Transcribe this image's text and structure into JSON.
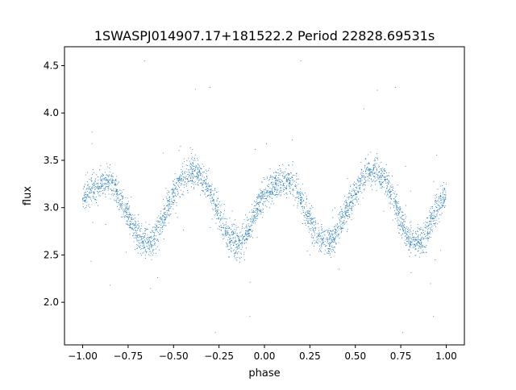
{
  "chart_data": {
    "type": "scatter",
    "title": "1SWASPJ014907.17+181522.2 Period 22828.69531s",
    "xlabel": "phase",
    "ylabel": "flux",
    "xlim": [
      -1.1,
      1.1
    ],
    "ylim": [
      1.55,
      4.7
    ],
    "x_ticks": [
      -1.0,
      -0.75,
      -0.5,
      -0.25,
      0.0,
      0.25,
      0.5,
      0.75,
      1.0
    ],
    "x_tick_labels": [
      "−1.00",
      "−0.75",
      "−0.50",
      "−0.25",
      "0.00",
      "0.25",
      "0.50",
      "0.75",
      "1.00"
    ],
    "y_ticks": [
      2.0,
      2.5,
      3.0,
      3.5,
      4.0,
      4.5
    ],
    "y_tick_labels": [
      "2.0",
      "2.5",
      "3.0",
      "3.5",
      "4.0",
      "4.5"
    ],
    "grid": false,
    "legend": "none",
    "series": [
      {
        "color": "#1f77b4",
        "marker": "point",
        "description": "folded light curve, two cycles from phase -1 to 1",
        "x": [
          -1.0,
          -0.97,
          -0.94,
          -0.91,
          -0.88,
          -0.85,
          -0.82,
          -0.79,
          -0.76,
          -0.73,
          -0.7,
          -0.67,
          -0.64,
          -0.61,
          -0.58,
          -0.55,
          -0.52,
          -0.49,
          -0.46,
          -0.43,
          -0.4,
          -0.37,
          -0.34,
          -0.31,
          -0.28,
          -0.25,
          -0.22,
          -0.19,
          -0.16,
          -0.13,
          -0.1,
          -0.07,
          -0.04,
          -0.01,
          0.02,
          0.05,
          0.08,
          0.11,
          0.14,
          0.17,
          0.2,
          0.23,
          0.26,
          0.29,
          0.32,
          0.35,
          0.38,
          0.41,
          0.44,
          0.47,
          0.5,
          0.53,
          0.56,
          0.59,
          0.62,
          0.65,
          0.68,
          0.71,
          0.74,
          0.77,
          0.8,
          0.83,
          0.86,
          0.89,
          0.92,
          0.95,
          0.98,
          1.0
        ],
        "y": [
          3.1,
          3.15,
          3.22,
          3.26,
          3.28,
          3.27,
          3.2,
          3.08,
          2.95,
          2.83,
          2.72,
          2.65,
          2.63,
          2.66,
          2.78,
          2.92,
          3.05,
          3.17,
          3.27,
          3.35,
          3.39,
          3.38,
          3.32,
          3.22,
          3.08,
          2.92,
          2.78,
          2.67,
          2.62,
          2.63,
          2.72,
          2.85,
          3.0,
          3.1,
          3.15,
          3.22,
          3.26,
          3.28,
          3.27,
          3.2,
          3.08,
          2.95,
          2.83,
          2.72,
          2.65,
          2.63,
          2.66,
          2.78,
          2.92,
          3.05,
          3.17,
          3.27,
          3.35,
          3.39,
          3.38,
          3.32,
          3.22,
          3.08,
          2.92,
          2.78,
          2.67,
          2.62,
          2.63,
          2.72,
          2.85,
          3.0,
          3.1,
          3.1
        ],
        "outliers": [
          [
            -0.66,
            4.55
          ],
          [
            -0.38,
            4.25
          ],
          [
            -0.3,
            4.27
          ],
          [
            0.2,
            4.55
          ],
          [
            0.62,
            4.24
          ],
          [
            0.72,
            4.27
          ],
          [
            -0.27,
            1.68
          ],
          [
            0.76,
            1.68
          ],
          [
            -0.85,
            2.18
          ],
          [
            -0.08,
            1.85
          ],
          [
            0.93,
            1.85
          ],
          [
            0.41,
            2.35
          ]
        ]
      }
    ]
  }
}
